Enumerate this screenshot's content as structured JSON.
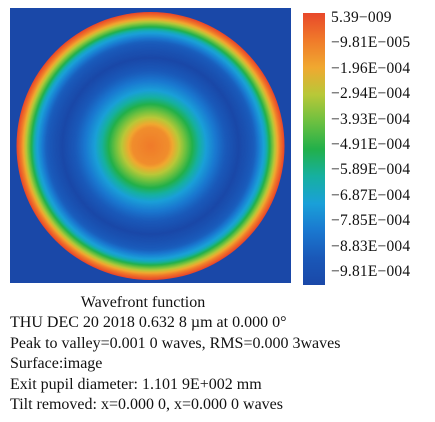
{
  "chart_data": {
    "type": "heatmap",
    "description_map": "circular wavefront phase map",
    "colorbar": {
      "labels": [
        "5.39−009",
        "−9.81E−005",
        "−1.96E−004",
        "−2.94E−004",
        "−3.93E−004",
        "−4.91E−004",
        "−5.89E−004",
        "−6.87E−004",
        "−7.85E−004",
        "−8.83E−004",
        "−9.81E−004"
      ],
      "values": [
        5.39e-09,
        -9.81e-05,
        -0.000196,
        -0.000294,
        -0.000393,
        -0.000491,
        -0.000589,
        -0.000687,
        -0.000785,
        -0.000883,
        -0.000981
      ],
      "colors": [
        "#e8482a",
        "#f07a2a",
        "#f0a830",
        "#b8c838",
        "#6cc040",
        "#22b04a",
        "#16b0a0",
        "#1aa0d8",
        "#1a78d0",
        "#1a58b8",
        "#1a48a8"
      ]
    },
    "radial_profile": [
      {
        "r": 0.0,
        "value": -9.81e-05
      },
      {
        "r": 0.14,
        "value": -0.00014
      },
      {
        "r": 0.22,
        "value": -0.0003
      },
      {
        "r": 0.32,
        "value": -0.0005
      },
      {
        "r": 0.42,
        "value": -0.00069
      },
      {
        "r": 0.54,
        "value": -0.00085
      },
      {
        "r": 0.66,
        "value": -0.000981
      },
      {
        "r": 0.78,
        "value": -0.00086
      },
      {
        "r": 0.86,
        "value": -0.00065
      },
      {
        "r": 0.92,
        "value": -0.00035
      },
      {
        "r": 0.97,
        "value": -0.0001
      },
      {
        "r": 1.0,
        "value": 5.39e-09
      }
    ],
    "background_color": "#1a48a8"
  },
  "caption": {
    "title": "Wavefront function",
    "date_line": "THU DEC 20  2018    0.632 8 µm at 0.000 0°",
    "pv_line": "Peak to valley=0.001 0 waves, RMS=0.000 3waves",
    "surface_line": "Surface:image",
    "pupil_line": "Exit pupil diameter: 1.101 9E+002 mm",
    "tilt_line": "Tilt removed: x=0.000 0, x=0.000 0 waves"
  }
}
